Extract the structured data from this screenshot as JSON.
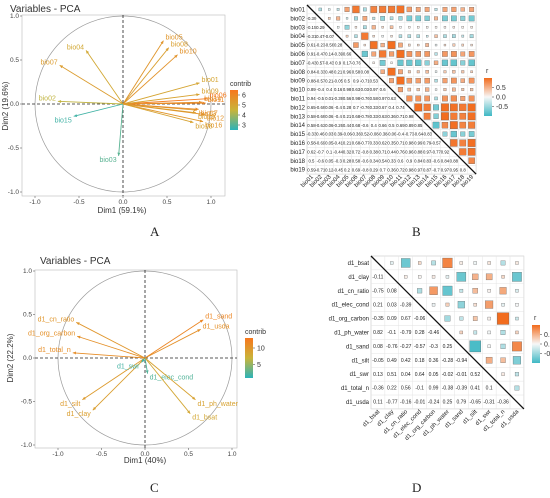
{
  "panels": {
    "A": "A",
    "B": "B",
    "C": "C",
    "D": "D"
  },
  "colors": {
    "low": "#3fb8c4",
    "high": "#f26b1c",
    "mid": "#f7f7f7",
    "pca_low": "#2bb3b9",
    "pca_high": "#f7771d",
    "pca_mid": "#c9b43a"
  },
  "chart_data": [
    {
      "type": "scatter",
      "title": "Variables - PCA",
      "xlabel": "Dim1 (59.1%)",
      "ylabel": "Dim2 (19.6%)",
      "xlim": [
        -1.1,
        1.1
      ],
      "ylim": [
        -1.1,
        1.1
      ],
      "xticks": [
        "-1.0",
        "-0.5",
        "0.0",
        "0.5",
        "1.0"
      ],
      "yticks": [
        "1.0",
        "0.5",
        "0.0",
        "-0.5",
        "-1.0"
      ],
      "legend_title": "contrib",
      "legend_ticks": [
        "6",
        "5",
        "4",
        "3"
      ],
      "legend_range": [
        2.5,
        6.5
      ],
      "vectors": [
        {
          "name": "bio01",
          "x": 0.87,
          "y": 0.24,
          "contrib": 5.0
        },
        {
          "name": "bio02",
          "x": -0.74,
          "y": 0.03,
          "contrib": 4.4
        },
        {
          "name": "bio03",
          "x": -0.05,
          "y": -0.59,
          "contrib": 3.1
        },
        {
          "name": "bio04",
          "x": -0.42,
          "y": 0.61,
          "contrib": 4.9
        },
        {
          "name": "bio05",
          "x": 0.46,
          "y": 0.72,
          "contrib": 5.5
        },
        {
          "name": "bio06",
          "x": 0.96,
          "y": 0.06,
          "contrib": 6.4
        },
        {
          "name": "bio07",
          "x": -0.72,
          "y": 0.44,
          "contrib": 5.3
        },
        {
          "name": "bio08",
          "x": 0.52,
          "y": 0.64,
          "contrib": 5.2
        },
        {
          "name": "bio09",
          "x": 0.87,
          "y": 0.11,
          "contrib": 5.1
        },
        {
          "name": "bio10",
          "x": 0.62,
          "y": 0.56,
          "contrib": 5.6
        },
        {
          "name": "bio11",
          "x": 0.94,
          "y": 0.01,
          "contrib": 6.0
        },
        {
          "name": "bio12",
          "x": 0.93,
          "y": -0.12,
          "contrib": 5.6
        },
        {
          "name": "bio13",
          "x": 0.84,
          "y": -0.07,
          "contrib": 5.4
        },
        {
          "name": "bio14",
          "x": 0.9,
          "y": 0.02,
          "contrib": 5.7
        },
        {
          "name": "bio15",
          "x": -0.56,
          "y": -0.14,
          "contrib": 2.8
        },
        {
          "name": "bio16",
          "x": 0.91,
          "y": -0.2,
          "contrib": 5.5
        },
        {
          "name": "bio17",
          "x": 0.86,
          "y": -0.06,
          "contrib": 5.8
        },
        {
          "name": "bio18",
          "x": 0.8,
          "y": -0.21,
          "contrib": 5.1
        },
        {
          "name": "bio19",
          "x": 0.83,
          "y": -0.1,
          "contrib": 5.3
        }
      ]
    },
    {
      "type": "heatmap",
      "variables": [
        "bio01",
        "bio02",
        "bio03",
        "bio04",
        "bio05",
        "bio06",
        "bio07",
        "bio08",
        "bio09",
        "bio10",
        "bio11",
        "bio12",
        "bio13",
        "bio14",
        "bio15",
        "bio16",
        "bio17",
        "bio18",
        "bio19"
      ],
      "lower_triangle_numbers": true,
      "upper_triangle_squares": true,
      "legend_title": "r",
      "legend_ticks": [
        "0.5",
        "0.0",
        "-0.5"
      ],
      "legend_range": [
        -1,
        1
      ],
      "matrix_rows": [
        [],
        [
          -0.39
        ],
        [
          -0.15,
          0.29
        ],
        [
          -0.31,
          0.47,
          -0.07
        ],
        [
          0.61,
          -0.23,
          -0.56,
          0.28
        ],
        [
          0.91,
          -0.47,
          0.14,
          -0.39,
          0.66
        ],
        [
          -0.43,
          0.57,
          -0.43,
          0.9,
          0.17,
          -0.76
        ],
        [
          0.84,
          -0.33,
          0.48,
          0.21,
          0.96,
          0.58,
          0.08
        ],
        [
          0.88,
          -0.57,
          0.21,
          -0.05,
          0.5,
          0.9,
          -0.71,
          0.53
        ],
        [
          0.89,
          -0.4,
          0.4,
          0.16,
          0.98,
          0.63,
          0.03,
          0.97,
          0.6
        ],
        [
          0.94,
          -0.5,
          0.01,
          -0.39,
          0.56,
          0.98,
          -0.76,
          0.58,
          0.97,
          0.63
        ],
        [
          0.65,
          -0.69,
          0.06,
          -0.4,
          0.28,
          0.7,
          -0.76,
          0.33,
          0.67,
          0.4,
          0.74
        ],
        [
          0.58,
          -0.69,
          0.06,
          -0.4,
          0.21,
          0.68,
          -0.78,
          0.33,
          0.63,
          0.36,
          0.71,
          0.98
        ],
        [
          0.58,
          -0.63,
          0.06,
          -0.26,
          0.44,
          0.68,
          -0.6,
          0.4,
          0.66,
          0.5,
          0.69,
          0.89,
          0.85
        ],
        [
          -0.33,
          0.46,
          0.03,
          0.39,
          -0.06,
          -0.36,
          0.52,
          -0.08,
          -0.38,
          -0.06,
          -0.4,
          -0.73,
          -0.64,
          -0.83
        ],
        [
          0.58,
          -0.69,
          0.05,
          -0.41,
          0.21,
          0.68,
          -0.77,
          0.33,
          0.62,
          0.35,
          0.71,
          0.98,
          0.99,
          0.79,
          -0.57
        ],
        [
          0.62,
          -0.7,
          0.1,
          -0.44,
          0.32,
          0.72,
          -0.8,
          0.38,
          0.71,
          0.44,
          0.76,
          0.96,
          0.88,
          0.97,
          -0.77,
          0.92
        ],
        [
          0.5,
          -0.6,
          0.05,
          -0.3,
          0.28,
          0.58,
          -0.6,
          0.34,
          0.54,
          0.33,
          0.6,
          0.9,
          0.84,
          0.83,
          -0.6,
          0.84,
          0.88
        ],
        [
          0.59,
          -0.71,
          0.12,
          -0.45,
          0.2,
          0.69,
          -0.8,
          0.29,
          0.7,
          0.36,
          0.72,
          0.98,
          0.97,
          0.87,
          -0.7,
          0.97,
          0.95,
          0.8
        ]
      ]
    },
    {
      "type": "scatter",
      "title": "Variables - PCA",
      "xlabel": "Dim1 (40%)",
      "ylabel": "Dim2 (22.2%)",
      "xlim": [
        -1.1,
        1.1
      ],
      "ylim": [
        -1.1,
        1.1
      ],
      "xticks": [
        "-1.0",
        "-0.5",
        "0.0",
        "0.5",
        "1.0"
      ],
      "yticks": [
        "1.0",
        "0.5",
        "0.0",
        "-0.5",
        "-1.0"
      ],
      "legend_title": "contrib",
      "legend_ticks": [
        "10",
        "5"
      ],
      "legend_range": [
        1,
        13
      ],
      "vectors": [
        {
          "name": "d1_sand",
          "x": 0.67,
          "y": 0.44,
          "contrib": 11.5
        },
        {
          "name": "d1_usda",
          "x": 0.64,
          "y": 0.33,
          "contrib": 10.5
        },
        {
          "name": "d1_cn_ratio",
          "x": -0.79,
          "y": 0.41,
          "contrib": 10.0
        },
        {
          "name": "d1_org_carbon",
          "x": -0.78,
          "y": 0.25,
          "contrib": 10.5
        },
        {
          "name": "d1_total_n",
          "x": -0.83,
          "y": 0.06,
          "contrib": 10.8
        },
        {
          "name": "d1_clay",
          "x": -0.6,
          "y": -0.6,
          "contrib": 9.2
        },
        {
          "name": "d1_silt",
          "x": -0.72,
          "y": -0.48,
          "contrib": 9.6
        },
        {
          "name": "d1_swr",
          "x": -0.04,
          "y": -0.05,
          "contrib": 2.0
        },
        {
          "name": "d1_elec_cond",
          "x": 0.03,
          "y": -0.18,
          "contrib": 2.5
        },
        {
          "name": "d1_ph_water",
          "x": 0.58,
          "y": -0.48,
          "contrib": 8.8
        },
        {
          "name": "d1_bsat",
          "x": 0.52,
          "y": -0.64,
          "contrib": 8.3
        }
      ]
    },
    {
      "type": "heatmap",
      "variables": [
        "d1_bsat",
        "d1_clay",
        "d1_cn_ratio",
        "d1_elec_cond",
        "d1_org_carbon",
        "d1_ph_water",
        "d1_sand",
        "d1_silt",
        "d1_swr",
        "d1_total_n",
        "d1_usda"
      ],
      "lower_triangle_numbers": true,
      "upper_triangle_squares": true,
      "legend_title": "r",
      "legend_ticks": [
        "0.5",
        "0.0",
        "-0.5"
      ],
      "legend_range": [
        -1,
        1
      ],
      "matrix_rows": [
        [],
        [
          -0.11
        ],
        [
          -0.75,
          0.08
        ],
        [
          0.21,
          0.03,
          -0.39
        ],
        [
          -0.35,
          0.09,
          0.67,
          -0.06
        ],
        [
          0.82,
          -0.1,
          -0.79,
          0.28,
          -0.46
        ],
        [
          0.08,
          -0.76,
          -0.27,
          -0.57,
          -0.3,
          0.25
        ],
        [
          -0.05,
          0.49,
          0.42,
          0.18,
          0.36,
          -0.28,
          -0.94
        ],
        [
          0.13,
          0.51,
          0.04,
          0.64,
          0.05,
          -0.02,
          -0.01,
          0.52
        ],
        [
          -0.36,
          0.22,
          0.56,
          -0.1,
          0.99,
          -0.38,
          -0.39,
          0.41,
          0.1
        ],
        [
          0.11,
          -0.77,
          -0.16,
          -0.01,
          -0.24,
          0.25,
          0.79,
          -0.65,
          -0.31,
          -0.36
        ]
      ]
    }
  ]
}
